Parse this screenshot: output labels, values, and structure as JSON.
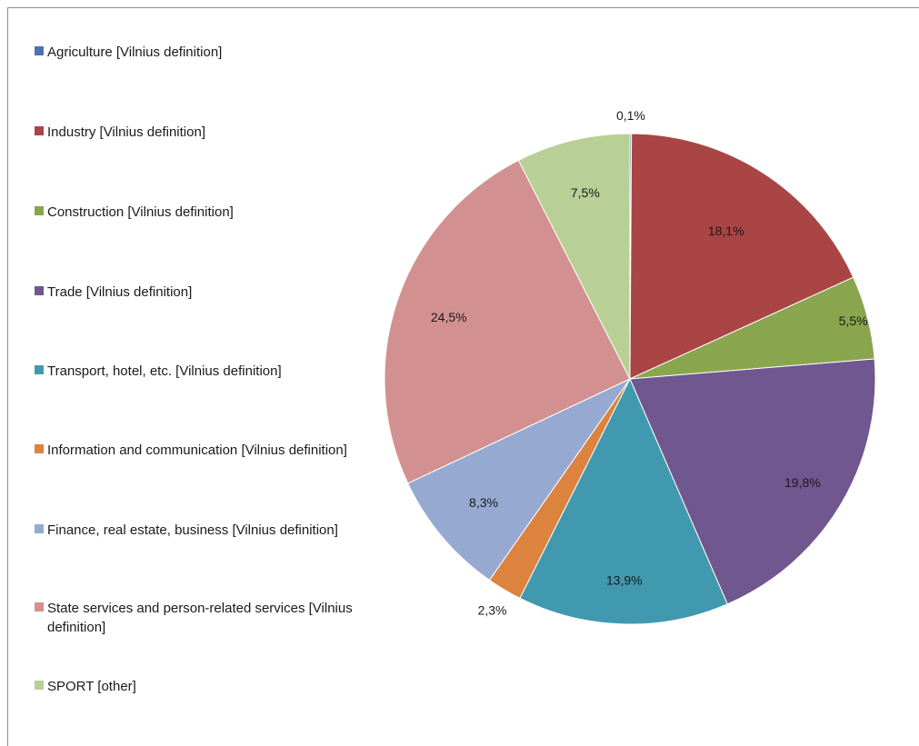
{
  "chart_data": {
    "type": "pie",
    "categories": [
      "Agriculture [Vilnius definition]",
      "Industry [Vilnius definition]",
      "Construction [Vilnius definition]",
      "Trade [Vilnius definition]",
      "Transport, hotel, etc. [Vilnius definition]",
      "Information and communication [Vilnius definition]",
      "Finance, real estate, business [Vilnius definition]",
      "State services and person-related services [Vilnius definition]",
      "SPORT [other]"
    ],
    "values": [
      0.1,
      18.1,
      5.5,
      19.8,
      13.9,
      2.3,
      8.3,
      24.5,
      7.5
    ],
    "data_labels": [
      "0,1%",
      "18,1%",
      "5,5%",
      "19,8%",
      "13,9%",
      "2,3%",
      "8,3%",
      "24,5%",
      "7,5%"
    ],
    "colors": [
      "#4a72b0",
      "#a94544",
      "#89a64e",
      "#70578f",
      "#4199af",
      "#db833f",
      "#95a9d1",
      "#d29190",
      "#b8cf96"
    ],
    "legend_position": "left",
    "title": ""
  }
}
